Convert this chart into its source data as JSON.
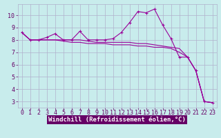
{
  "background_color": "#c8ecec",
  "grid_color": "#b0b0cc",
  "line_color": "#990099",
  "xlabel": "Windchill (Refroidissement éolien,°C)",
  "yticks": [
    3,
    4,
    5,
    6,
    7,
    8,
    9,
    10
  ],
  "xticks": [
    0,
    1,
    2,
    3,
    4,
    5,
    6,
    7,
    8,
    9,
    10,
    11,
    12,
    13,
    14,
    15,
    16,
    17,
    18,
    19,
    20,
    21,
    22,
    23
  ],
  "xlim": [
    -0.5,
    23.5
  ],
  "ylim": [
    2.5,
    10.9
  ],
  "series1_x": [
    0,
    1,
    2,
    3,
    4,
    5,
    6,
    7,
    8,
    9,
    10,
    11,
    12,
    13,
    14,
    15,
    16,
    17,
    18,
    19,
    20,
    21,
    22,
    23
  ],
  "series1_y": [
    8.6,
    8.0,
    8.0,
    8.2,
    8.5,
    8.0,
    8.0,
    8.7,
    8.0,
    8.0,
    8.0,
    8.1,
    8.6,
    9.4,
    10.3,
    10.2,
    10.5,
    9.2,
    8.1,
    6.6,
    6.6,
    5.5,
    3.0,
    2.9
  ],
  "series2_x": [
    0,
    1,
    2,
    3,
    4,
    5,
    6,
    7,
    8,
    9,
    10,
    11,
    12,
    13,
    14,
    15,
    16,
    17,
    18,
    19,
    20,
    21,
    22,
    23
  ],
  "series2_y": [
    8.6,
    8.0,
    8.0,
    8.0,
    8.0,
    8.0,
    8.0,
    8.0,
    7.9,
    7.8,
    7.8,
    7.8,
    7.8,
    7.8,
    7.7,
    7.7,
    7.6,
    7.5,
    7.4,
    7.3,
    6.6,
    5.5,
    3.0,
    2.9
  ],
  "series3_x": [
    0,
    1,
    2,
    3,
    4,
    5,
    6,
    7,
    8,
    9,
    10,
    11,
    12,
    13,
    14,
    15,
    16,
    17,
    18,
    19,
    20,
    21,
    22,
    23
  ],
  "series3_y": [
    8.6,
    8.0,
    8.0,
    8.0,
    8.0,
    7.9,
    7.8,
    7.8,
    7.7,
    7.7,
    7.7,
    7.6,
    7.6,
    7.6,
    7.5,
    7.5,
    7.4,
    7.4,
    7.3,
    7.0,
    6.6,
    5.5,
    3.0,
    2.9
  ],
  "xlabel_bg": "#660066",
  "xlabel_color": "#ffffff",
  "tick_color": "#660066",
  "xlabel_fontsize": 6.5,
  "tick_fontsize": 6.0
}
